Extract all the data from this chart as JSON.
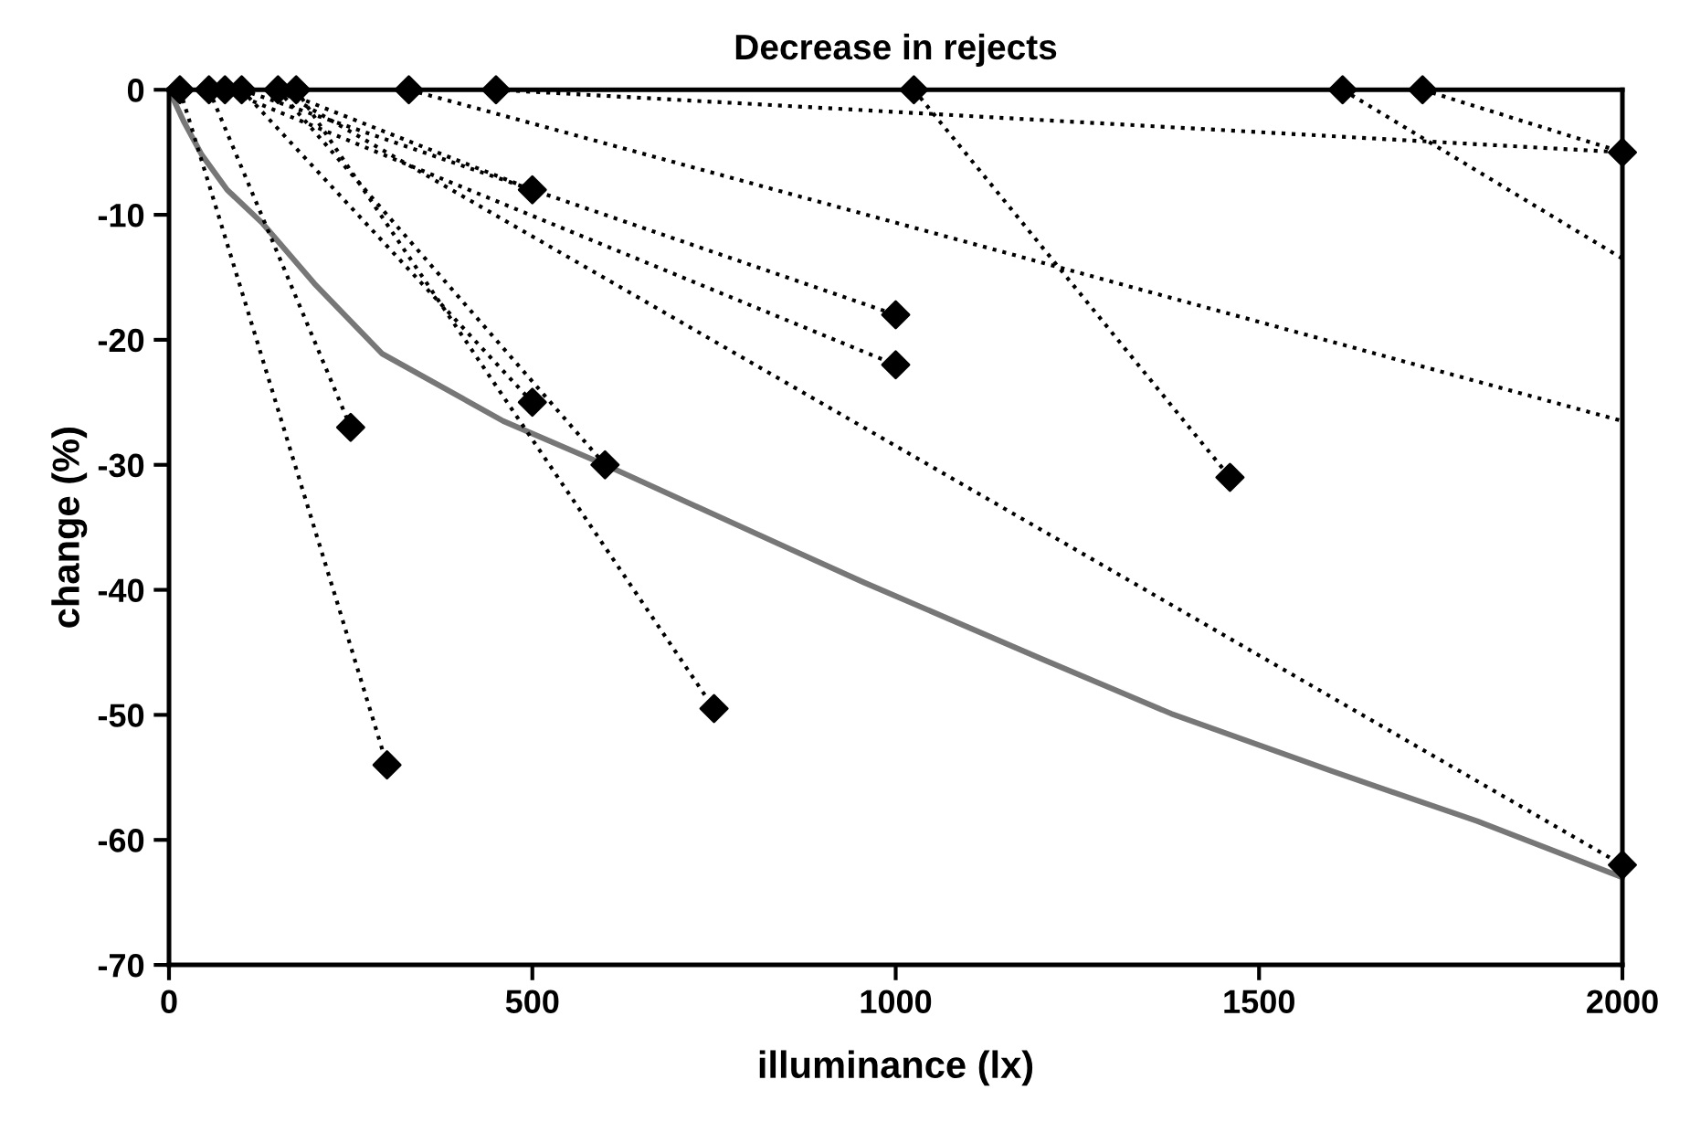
{
  "chart_data": {
    "type": "line",
    "title": "Decrease in rejects",
    "xlabel": "illuminance (lx)",
    "ylabel": "change (%)",
    "xlim": [
      0,
      2000
    ],
    "xticks": [
      0,
      500,
      1000,
      1500,
      2000
    ],
    "ylim": [
      -70,
      0
    ],
    "yticks": [
      -70,
      -60,
      -50,
      -40,
      -30,
      -20,
      -10,
      0
    ],
    "grid": false,
    "series": [
      {
        "color": "#777777",
        "line_style": "solid",
        "marker": "none",
        "x": [
          0,
          20,
          45,
          80,
          129,
          200,
          293,
          460,
          600,
          857,
          956,
          1200,
          1379,
          1600,
          1800,
          2000
        ],
        "values": [
          0,
          -2.5,
          -5.2,
          -8,
          -10.7,
          -15.5,
          -21.1,
          -26.5,
          -30,
          -36.8,
          -39.4,
          -45.5,
          -49.9,
          -54.5,
          -58.5,
          -63
        ]
      },
      {
        "type": "line",
        "color": "#000000",
        "line_style": "dotted",
        "marker": "none",
        "x": [
          15,
          300
        ],
        "values": [
          0,
          -54
        ]
      },
      {
        "type": "line",
        "color": "#000000",
        "line_style": "dotted",
        "marker": "none",
        "x": [
          55,
          250
        ],
        "values": [
          0,
          -27
        ]
      },
      {
        "type": "line",
        "color": "#000000",
        "line_style": "dotted",
        "marker": "none",
        "x": [
          175,
          750
        ],
        "values": [
          0,
          -49.5
        ]
      },
      {
        "type": "line",
        "color": "#000000",
        "line_style": "dotted",
        "marker": "none",
        "x": [
          150,
          600
        ],
        "values": [
          0,
          -30
        ]
      },
      {
        "type": "line",
        "color": "#000000",
        "line_style": "dotted",
        "marker": "none",
        "x": [
          100,
          500
        ],
        "values": [
          0,
          -25
        ]
      },
      {
        "type": "line",
        "color": "#000000",
        "line_style": "dotted",
        "marker": "none",
        "x": [
          77,
          1000
        ],
        "values": [
          0,
          -22
        ]
      },
      {
        "type": "line",
        "color": "#000000",
        "line_style": "dotted",
        "marker": "none",
        "x": [
          100,
          1000
        ],
        "values": [
          0,
          -18
        ]
      },
      {
        "type": "line",
        "color": "#000000",
        "line_style": "dotted",
        "marker": "none",
        "x": [
          150,
          500
        ],
        "values": [
          0,
          -8
        ]
      },
      {
        "type": "line",
        "color": "#000000",
        "line_style": "dotted",
        "marker": "none",
        "x": [
          150,
          2000
        ],
        "values": [
          0,
          -62
        ]
      },
      {
        "type": "line",
        "color": "#000000",
        "line_style": "dotted",
        "marker": "none",
        "x": [
          330,
          2000
        ],
        "values": [
          0,
          -26.5
        ]
      },
      {
        "type": "line",
        "color": "#000000",
        "line_style": "dotted",
        "marker": "none",
        "x": [
          450,
          2000
        ],
        "values": [
          0,
          -5
        ]
      },
      {
        "type": "line",
        "color": "#000000",
        "line_style": "dotted",
        "marker": "none",
        "x": [
          1025,
          1460
        ],
        "values": [
          0,
          -31
        ]
      },
      {
        "type": "line",
        "color": "#000000",
        "line_style": "dotted",
        "marker": "none",
        "x": [
          1615,
          2000
        ],
        "values": [
          0,
          -13.5
        ]
      },
      {
        "type": "line",
        "color": "#000000",
        "line_style": "dotted",
        "marker": "none",
        "x": [
          1725,
          2000
        ],
        "values": [
          0,
          -5
        ]
      },
      {
        "type": "scatter",
        "color": "#000000",
        "marker": "diamond",
        "x": [
          15,
          55,
          77,
          100,
          150,
          175,
          330,
          450,
          1025,
          1615,
          1725,
          300,
          250,
          750,
          600,
          500,
          1000,
          1000,
          500,
          2000,
          2000,
          1460
        ],
        "values": [
          0,
          0,
          0,
          0,
          0,
          0,
          0,
          0,
          0,
          0,
          0,
          -54,
          -27,
          -49.5,
          -30,
          -25,
          -22,
          -18,
          -8,
          -62,
          -5,
          -31
        ]
      }
    ]
  }
}
